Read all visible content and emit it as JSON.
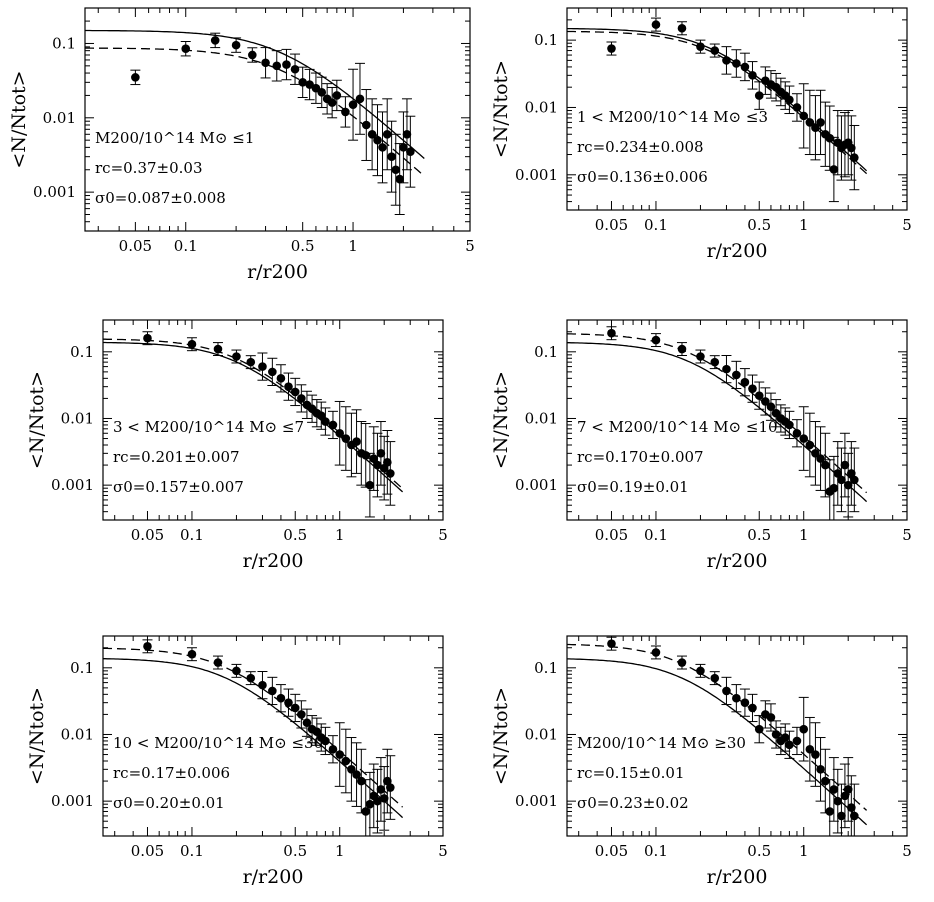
{
  "figure": {
    "ytick_labels": [
      "0.1",
      "0.01",
      "0.001"
    ],
    "xtick_labels": [
      "0.05",
      "0.1",
      "0.5",
      "1",
      "5"
    ]
  },
  "chart_data": [
    {
      "type": "scatter",
      "xscale": "log",
      "yscale": "log",
      "xlabel": "r/r200",
      "ylabel": "<N/Ntot>",
      "xlim": [
        0.025,
        5
      ],
      "ylim": [
        0.0003,
        0.3
      ],
      "annotations": [
        "M200/10^14 M⊙ ≤1",
        "rc=0.37±0.03",
        "σ0=0.087±0.008"
      ],
      "series": [
        {
          "kind": "points",
          "x": [
            0.05,
            0.1,
            0.15,
            0.2,
            0.25,
            0.3,
            0.35,
            0.4,
            0.45,
            0.5,
            0.55,
            0.6,
            0.65,
            0.7,
            0.75,
            0.8,
            0.9,
            1.0,
            1.1,
            1.2,
            1.3,
            1.4,
            1.5,
            1.6,
            1.7,
            1.8,
            1.9,
            2.0,
            2.1,
            2.2
          ],
          "y": [
            0.035,
            0.085,
            0.11,
            0.095,
            0.07,
            0.055,
            0.05,
            0.052,
            0.045,
            0.03,
            0.028,
            0.025,
            0.022,
            0.018,
            0.016,
            0.02,
            0.012,
            0.015,
            0.018,
            0.008,
            0.006,
            0.005,
            0.004,
            0.006,
            0.003,
            0.002,
            0.0015,
            0.004,
            0.006,
            0.0035
          ]
        },
        {
          "kind": "solid-curve",
          "rc": 0.37,
          "sigma0": 0.15
        },
        {
          "kind": "dashed-curve",
          "rc": 0.37,
          "sigma0": 0.087
        }
      ]
    },
    {
      "type": "scatter",
      "xscale": "log",
      "yscale": "log",
      "xlabel": "r/r200",
      "ylabel": "<N/Ntot>",
      "xlim": [
        0.025,
        5
      ],
      "ylim": [
        0.0003,
        0.3
      ],
      "annotations": [
        "1 < M200/10^14 M⊙ ≤3",
        "rc=0.234±0.008",
        "σ0=0.136±0.006"
      ],
      "series": [
        {
          "kind": "points",
          "x": [
            0.05,
            0.1,
            0.15,
            0.2,
            0.25,
            0.3,
            0.35,
            0.4,
            0.45,
            0.5,
            0.55,
            0.6,
            0.65,
            0.7,
            0.75,
            0.8,
            0.9,
            1.0,
            1.1,
            1.2,
            1.3,
            1.4,
            1.5,
            1.6,
            1.7,
            1.8,
            1.9,
            2.0,
            2.1,
            2.2
          ],
          "y": [
            0.075,
            0.17,
            0.15,
            0.08,
            0.07,
            0.05,
            0.045,
            0.04,
            0.03,
            0.015,
            0.025,
            0.022,
            0.02,
            0.017,
            0.015,
            0.013,
            0.01,
            0.0075,
            0.006,
            0.005,
            0.006,
            0.004,
            0.0035,
            0.0012,
            0.003,
            0.0025,
            0.0028,
            0.003,
            0.0025,
            0.0018
          ]
        },
        {
          "kind": "solid-curve",
          "rc": 0.234,
          "sigma0": 0.15
        },
        {
          "kind": "dashed-curve",
          "rc": 0.234,
          "sigma0": 0.136
        }
      ]
    },
    {
      "type": "scatter",
      "xscale": "log",
      "yscale": "log",
      "xlabel": "r/r200",
      "ylabel": "<N/Ntot>",
      "xlim": [
        0.025,
        5
      ],
      "ylim": [
        0.0003,
        0.3
      ],
      "annotations": [
        "3 < M200/10^14 M⊙ ≤7",
        "rc=0.201±0.007",
        "σ0=0.157±0.007"
      ],
      "series": [
        {
          "kind": "points",
          "x": [
            0.05,
            0.1,
            0.15,
            0.2,
            0.25,
            0.3,
            0.35,
            0.4,
            0.45,
            0.5,
            0.55,
            0.6,
            0.65,
            0.7,
            0.75,
            0.8,
            0.9,
            1.0,
            1.1,
            1.2,
            1.3,
            1.4,
            1.5,
            1.6,
            1.7,
            1.8,
            1.9,
            2.0,
            2.1,
            2.2
          ],
          "y": [
            0.16,
            0.13,
            0.11,
            0.085,
            0.07,
            0.06,
            0.05,
            0.04,
            0.03,
            0.025,
            0.02,
            0.016,
            0.014,
            0.012,
            0.011,
            0.009,
            0.008,
            0.006,
            0.005,
            0.004,
            0.0045,
            0.003,
            0.0028,
            0.001,
            0.0025,
            0.002,
            0.003,
            0.0018,
            0.0022,
            0.0015
          ]
        },
        {
          "kind": "solid-curve",
          "rc": 0.201,
          "sigma0": 0.14
        },
        {
          "kind": "dashed-curve",
          "rc": 0.201,
          "sigma0": 0.157
        }
      ]
    },
    {
      "type": "scatter",
      "xscale": "log",
      "yscale": "log",
      "xlabel": "r/r200",
      "ylabel": "<N/Ntot>",
      "xlim": [
        0.025,
        5
      ],
      "ylim": [
        0.0003,
        0.3
      ],
      "annotations": [
        "7 < M200/10^14 M⊙ ≤10",
        "rc=0.170±0.007",
        "σ0=0.19±0.01"
      ],
      "series": [
        {
          "kind": "points",
          "x": [
            0.05,
            0.1,
            0.15,
            0.2,
            0.25,
            0.3,
            0.35,
            0.4,
            0.45,
            0.5,
            0.55,
            0.6,
            0.65,
            0.7,
            0.75,
            0.8,
            0.9,
            1.0,
            1.1,
            1.2,
            1.3,
            1.4,
            1.5,
            1.6,
            1.7,
            1.8,
            1.9,
            2.0,
            2.1,
            2.2
          ],
          "y": [
            0.19,
            0.15,
            0.11,
            0.085,
            0.07,
            0.055,
            0.045,
            0.035,
            0.028,
            0.022,
            0.018,
            0.015,
            0.012,
            0.01,
            0.009,
            0.008,
            0.006,
            0.005,
            0.004,
            0.003,
            0.0025,
            0.002,
            0.0008,
            0.0009,
            0.0015,
            0.0012,
            0.002,
            0.001,
            0.0015,
            0.0012
          ]
        },
        {
          "kind": "solid-curve",
          "rc": 0.17,
          "sigma0": 0.14
        },
        {
          "kind": "dashed-curve",
          "rc": 0.17,
          "sigma0": 0.19
        }
      ]
    },
    {
      "type": "scatter",
      "xscale": "log",
      "yscale": "log",
      "xlabel": "r/r200",
      "ylabel": "<N/Ntot>",
      "xlim": [
        0.025,
        5
      ],
      "ylim": [
        0.0003,
        0.3
      ],
      "annotations": [
        "10 < M200/10^14 M⊙ ≤30",
        "rc=0.17±0.006",
        "σ0=0.20±0.01"
      ],
      "series": [
        {
          "kind": "points",
          "x": [
            0.05,
            0.1,
            0.15,
            0.2,
            0.25,
            0.3,
            0.35,
            0.4,
            0.45,
            0.5,
            0.55,
            0.6,
            0.65,
            0.7,
            0.75,
            0.8,
            0.9,
            1.0,
            1.1,
            1.2,
            1.3,
            1.4,
            1.5,
            1.6,
            1.7,
            1.8,
            1.9,
            2.0,
            2.1,
            2.2
          ],
          "y": [
            0.21,
            0.16,
            0.12,
            0.09,
            0.07,
            0.055,
            0.045,
            0.035,
            0.03,
            0.025,
            0.02,
            0.015,
            0.012,
            0.011,
            0.009,
            0.008,
            0.006,
            0.005,
            0.004,
            0.003,
            0.0025,
            0.002,
            0.0007,
            0.0009,
            0.0012,
            0.001,
            0.0015,
            0.0011,
            0.002,
            0.0016
          ]
        },
        {
          "kind": "solid-curve",
          "rc": 0.17,
          "sigma0": 0.14
        },
        {
          "kind": "dashed-curve",
          "rc": 0.17,
          "sigma0": 0.2
        }
      ]
    },
    {
      "type": "scatter",
      "xscale": "log",
      "yscale": "log",
      "xlabel": "r/r200",
      "ylabel": "<N/Ntot>",
      "xlim": [
        0.025,
        5
      ],
      "ylim": [
        0.0003,
        0.3
      ],
      "annotations": [
        "M200/10^14 M⊙ ≥30",
        "rc=0.15±0.01",
        "σ0=0.23±0.02"
      ],
      "series": [
        {
          "kind": "points",
          "x": [
            0.05,
            0.1,
            0.15,
            0.2,
            0.25,
            0.3,
            0.35,
            0.4,
            0.45,
            0.5,
            0.55,
            0.6,
            0.65,
            0.7,
            0.75,
            0.8,
            0.9,
            1.0,
            1.1,
            1.2,
            1.3,
            1.4,
            1.5,
            1.6,
            1.7,
            1.8,
            1.9,
            2.0,
            2.1,
            2.2
          ],
          "y": [
            0.23,
            0.17,
            0.12,
            0.09,
            0.07,
            0.045,
            0.035,
            0.03,
            0.025,
            0.012,
            0.02,
            0.018,
            0.01,
            0.008,
            0.009,
            0.007,
            0.008,
            0.012,
            0.006,
            0.005,
            0.003,
            0.002,
            0.0007,
            0.0015,
            0.001,
            0.0006,
            0.0012,
            0.0015,
            0.0008,
            0.0006
          ]
        },
        {
          "kind": "solid-curve",
          "rc": 0.15,
          "sigma0": 0.14
        },
        {
          "kind": "dashed-curve",
          "rc": 0.15,
          "sigma0": 0.23
        }
      ]
    }
  ]
}
